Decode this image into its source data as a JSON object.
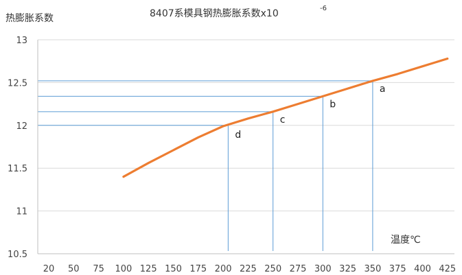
{
  "chart_data": {
    "type": "line",
    "title": "8407系模具钢热膨胀系数x10",
    "title_superscript": "-6",
    "ylabel": "热膨胀系数",
    "xlabel": "温度℃",
    "x_ticks": [
      20,
      50,
      75,
      100,
      125,
      150,
      175,
      200,
      225,
      250,
      275,
      300,
      325,
      350,
      375,
      400,
      425
    ],
    "y_ticks": [
      "13",
      "12.5",
      "12",
      "11.5",
      "11",
      "10.5"
    ],
    "ylim": [
      10.5,
      13
    ],
    "grid": "horizontal",
    "series": [
      {
        "color": "#ED7D31",
        "x": [
          100,
          125,
          150,
          175,
          200,
          225,
          250,
          275,
          300,
          325,
          350,
          375,
          400,
          425
        ],
        "y": [
          11.4,
          11.56,
          11.71,
          11.86,
          11.99,
          12.08,
          12.16,
          12.25,
          12.34,
          12.43,
          12.52,
          12.6,
          12.69,
          12.78
        ]
      }
    ],
    "reference_points": [
      {
        "label": "a",
        "x": 350,
        "y": 12.52
      },
      {
        "label": "b",
        "x": 300,
        "y": 12.34
      },
      {
        "label": "c",
        "x": 250,
        "y": 12.16
      },
      {
        "label": "d",
        "x": 205,
        "y": 12.0
      }
    ],
    "colors": {
      "line": "#ED7D31",
      "reference_lines": "#5B9BD5",
      "grid": "#D9D9D9",
      "axis": "#BFBFBF"
    }
  }
}
